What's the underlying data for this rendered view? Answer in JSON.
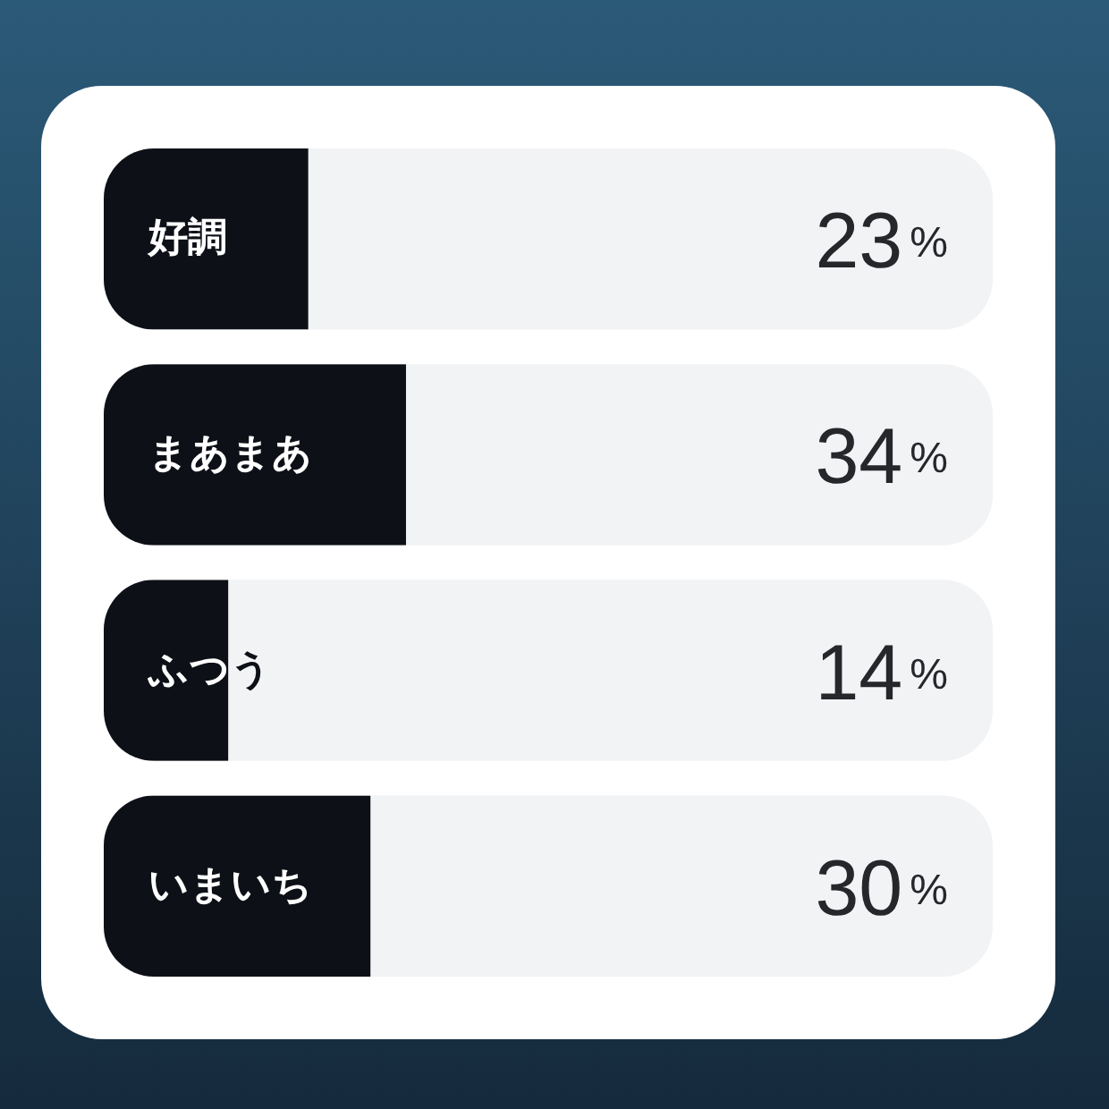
{
  "chart_data": {
    "type": "bar",
    "orientation": "horizontal",
    "categories": [
      "好調",
      "まあまあ",
      "ふつう",
      "いまいち"
    ],
    "values": [
      23,
      34,
      14,
      30
    ],
    "value_labels": [
      "23%",
      "34%",
      "14%",
      "30%"
    ],
    "xlim": [
      0,
      100
    ],
    "color": "#0d1117"
  }
}
